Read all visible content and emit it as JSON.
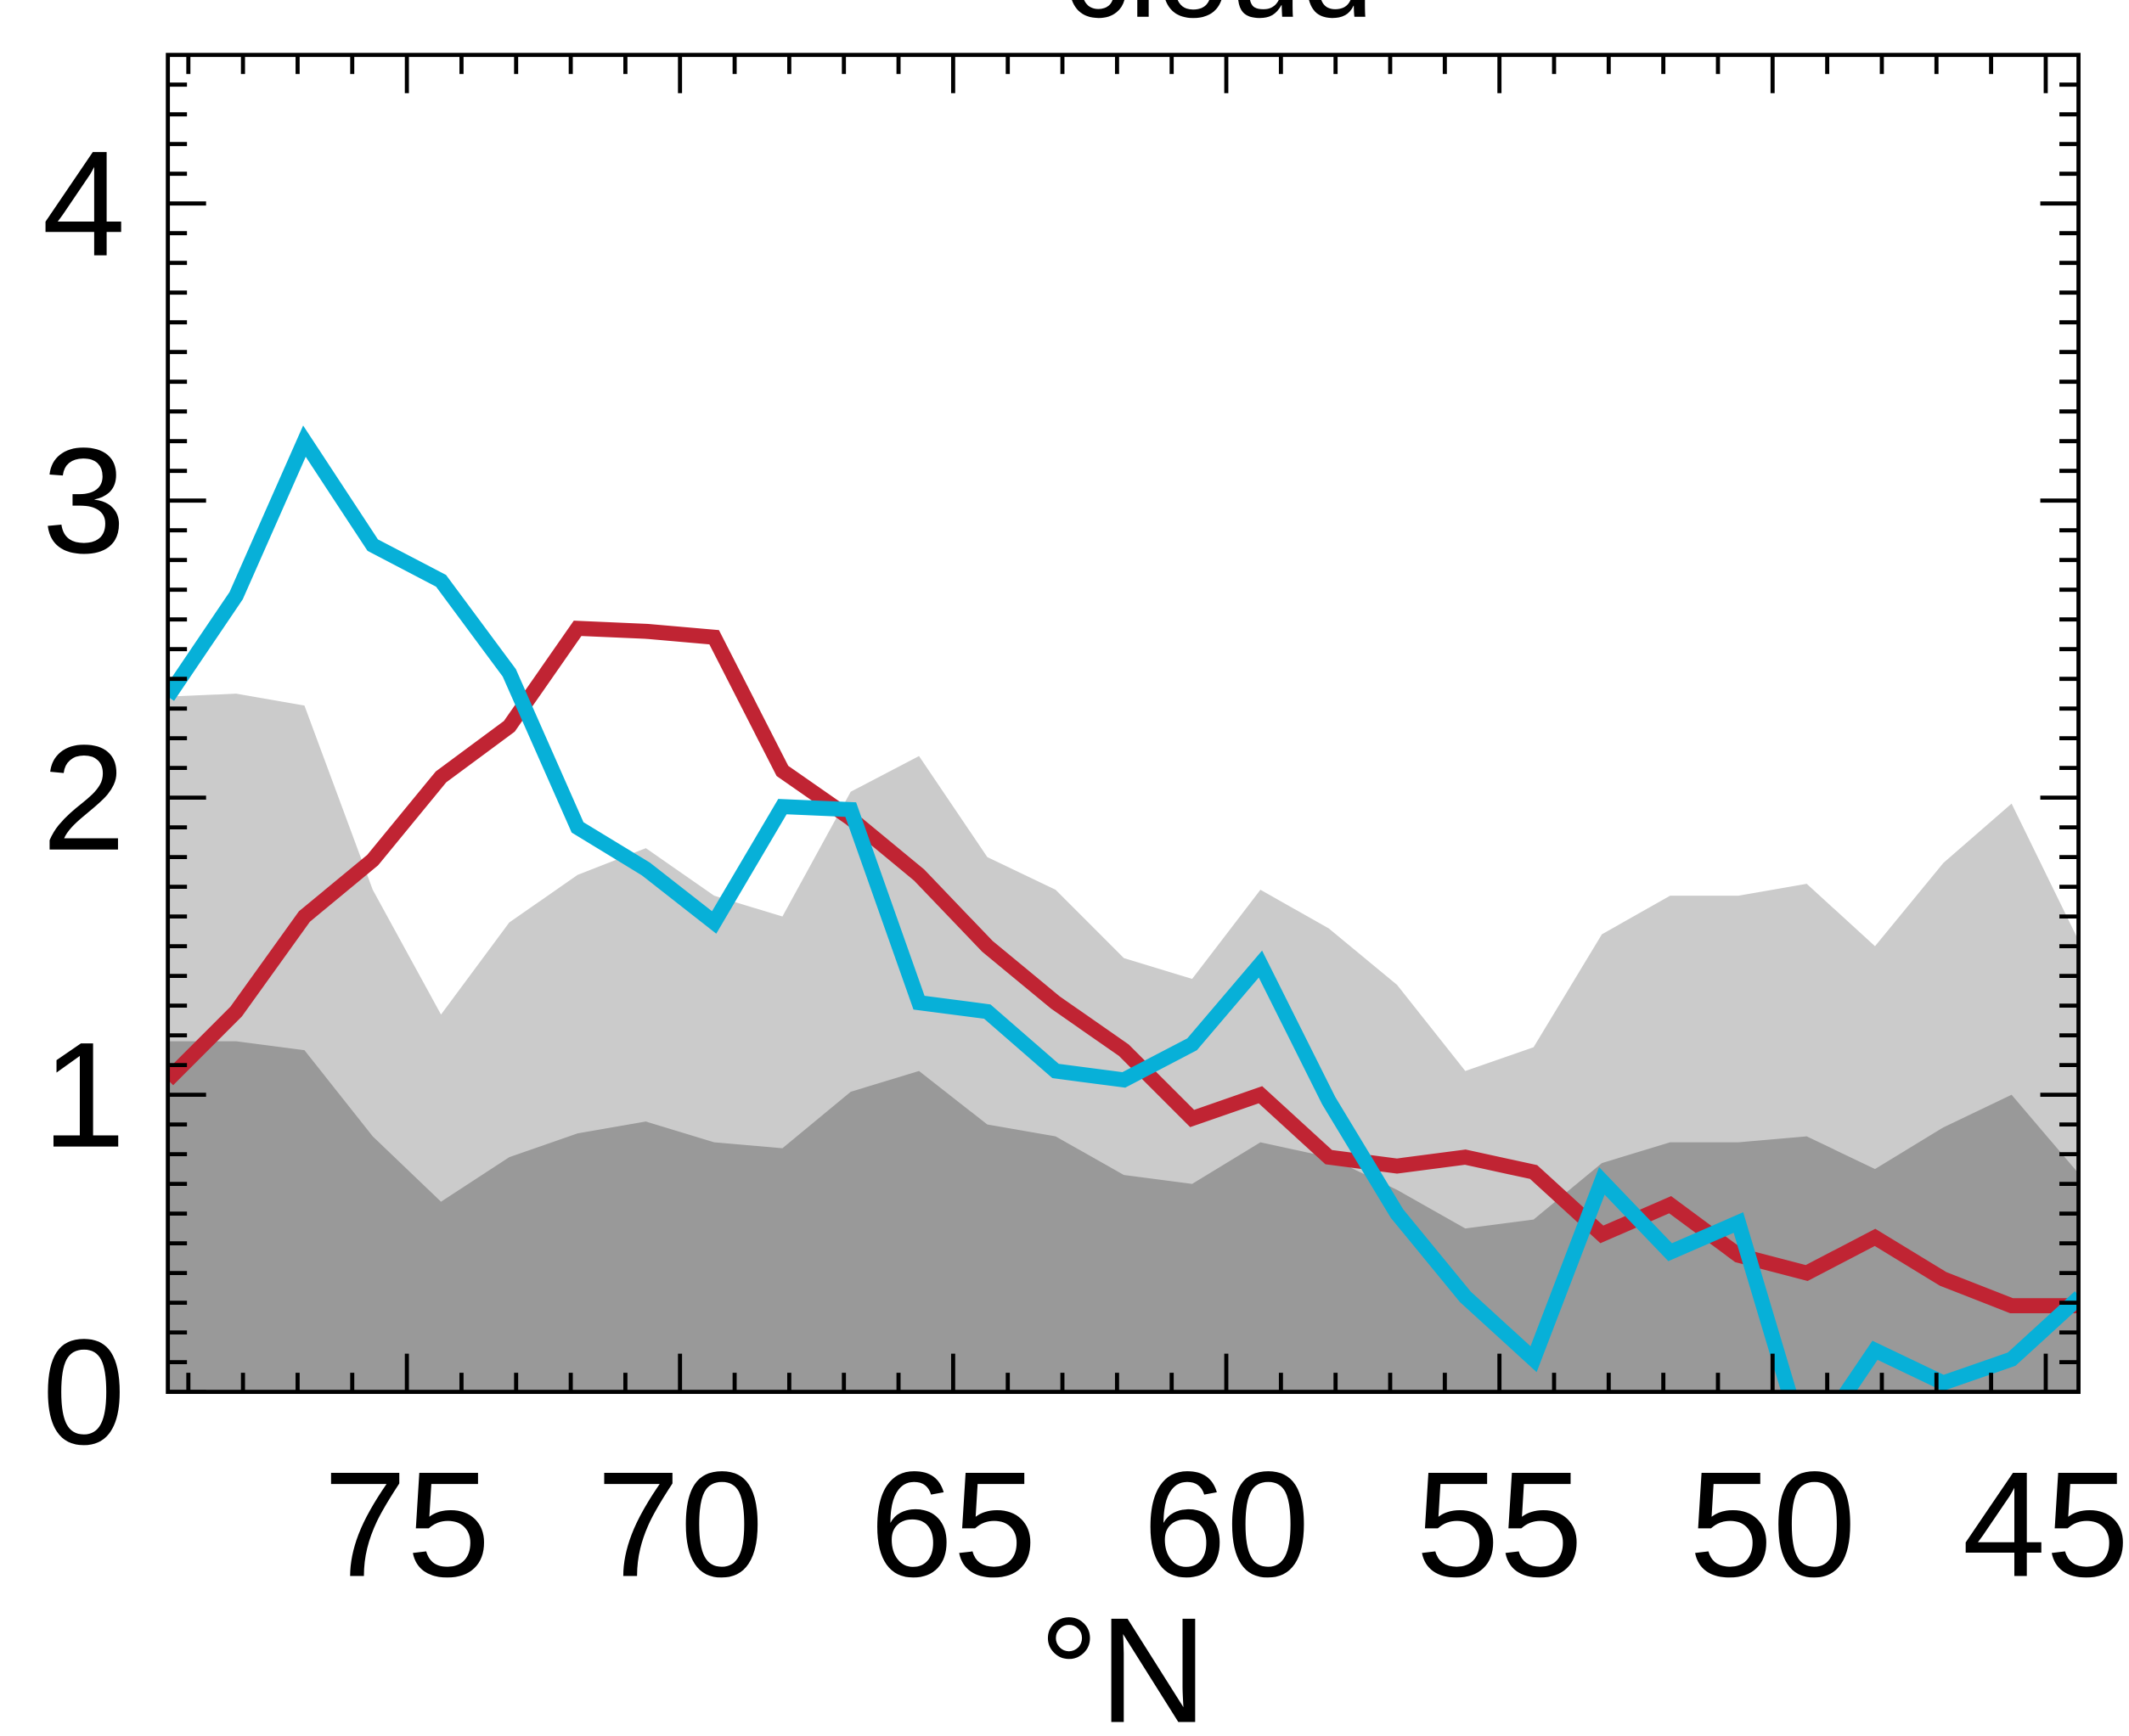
{
  "chart_data": {
    "type": "line",
    "title": "cloud",
    "xlabel": "°N",
    "x": [
      79.375,
      78.125,
      76.875,
      75.625,
      74.375,
      73.125,
      71.875,
      70.625,
      69.375,
      68.125,
      66.875,
      65.625,
      64.375,
      63.125,
      61.875,
      60.625,
      59.375,
      58.125,
      56.875,
      55.625,
      54.375,
      53.125,
      51.875,
      50.625,
      49.375,
      48.125,
      46.875,
      45.625,
      44.375
    ],
    "series": [
      {
        "kind": "area",
        "color": "#cbcbcb",
        "values": [
          2.34,
          2.35,
          2.31,
          1.69,
          1.27,
          1.58,
          1.74,
          1.83,
          1.67,
          1.6,
          2.02,
          2.14,
          1.8,
          1.69,
          1.46,
          1.39,
          1.69,
          1.56,
          1.37,
          1.08,
          1.16,
          1.54,
          1.67,
          1.67,
          1.71,
          1.5,
          1.78,
          1.98,
          1.51
        ]
      },
      {
        "kind": "area",
        "color": "#999999",
        "values": [
          1.18,
          1.18,
          1.15,
          0.86,
          0.64,
          0.79,
          0.87,
          0.91,
          0.84,
          0.82,
          1.01,
          1.08,
          0.9,
          0.86,
          0.73,
          0.7,
          0.84,
          0.79,
          0.68,
          0.55,
          0.58,
          0.77,
          0.84,
          0.84,
          0.86,
          0.75,
          0.89,
          1.0,
          0.73
        ]
      },
      {
        "kind": "line",
        "color": "#c02433",
        "values": [
          1.05,
          1.28,
          1.6,
          1.79,
          2.07,
          2.24,
          2.57,
          2.56,
          2.54,
          2.09,
          1.93,
          1.74,
          1.5,
          1.31,
          1.15,
          0.92,
          1.0,
          0.79,
          0.76,
          0.79,
          0.74,
          0.53,
          0.63,
          0.46,
          0.4,
          0.52,
          0.38,
          0.29,
          0.29
        ]
      },
      {
        "kind": "line",
        "color": "#07b0d8",
        "values": [
          2.34,
          2.68,
          3.2,
          2.85,
          2.73,
          2.42,
          1.9,
          1.76,
          1.58,
          1.97,
          1.96,
          1.31,
          1.28,
          1.08,
          1.05,
          1.17,
          1.44,
          0.98,
          0.6,
          0.32,
          0.11,
          0.71,
          0.47,
          0.57,
          -0.2,
          0.14,
          0.03,
          0.11,
          0.32
        ]
      }
    ],
    "xlim": [
      79.375,
      44.4
    ],
    "xticks": [
      75,
      70,
      65,
      60,
      55,
      50,
      45
    ],
    "xminor_ticks": [
      79,
      78,
      77,
      76,
      74,
      73,
      72,
      71,
      69,
      68,
      67,
      66,
      64,
      63,
      62,
      61,
      59,
      58,
      57,
      56,
      54,
      53,
      52,
      51,
      49,
      48,
      47,
      46
    ],
    "ylim": [
      0,
      4.5
    ],
    "yticks": [
      0,
      1,
      2,
      3,
      4
    ],
    "yminor_ticks": [
      0.1,
      0.2,
      0.3,
      0.4,
      0.5,
      0.6,
      0.7,
      0.8,
      0.9,
      1.1,
      1.2,
      1.3,
      1.4,
      1.5,
      1.6,
      1.7,
      1.8,
      1.9,
      2.1,
      2.2,
      2.3,
      2.4,
      2.5,
      2.6,
      2.7,
      2.8,
      2.9,
      3.1,
      3.2,
      3.3,
      3.4,
      3.5,
      3.6,
      3.7,
      3.8,
      3.9,
      4.1,
      4.2,
      4.3,
      4.4
    ]
  }
}
